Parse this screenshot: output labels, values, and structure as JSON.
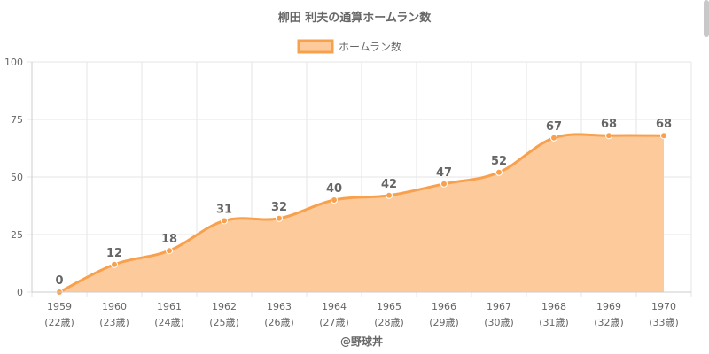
{
  "chart_data": {
    "type": "area",
    "title": "柳田 利夫の通算ホームラン数",
    "legend": {
      "placement": "top-center",
      "entries": [
        "ホームラン数"
      ]
    },
    "categories": [
      "1959",
      "1960",
      "1961",
      "1962",
      "1963",
      "1964",
      "1965",
      "1966",
      "1967",
      "1968",
      "1969",
      "1970"
    ],
    "sublabels": [
      "(22歳)",
      "(23歳)",
      "(24歳)",
      "(25歳)",
      "(26歳)",
      "(27歳)",
      "(28歳)",
      "(29歳)",
      "(30歳)",
      "(31歳)",
      "(32歳)",
      "(33歳)"
    ],
    "series": [
      {
        "name": "ホームラン数",
        "values": [
          0,
          12,
          18,
          31,
          32,
          40,
          42,
          47,
          52,
          67,
          68,
          68
        ]
      }
    ],
    "ylim": [
      0,
      100
    ],
    "yticks": [
      0,
      25,
      50,
      75,
      100
    ],
    "grid": true,
    "credit": "@野球丼",
    "colors": {
      "line": "#f9a04d",
      "fill": "#fdcb9b",
      "grid": "#e6e6e6",
      "text": "#666666"
    }
  }
}
